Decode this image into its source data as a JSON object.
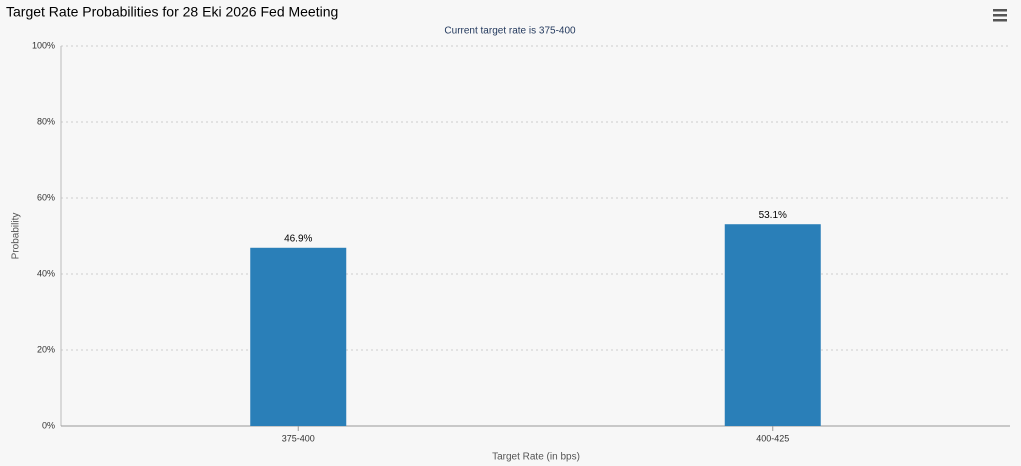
{
  "chart_data": {
    "type": "bar",
    "title": "Target Rate Probabilities for 28 Eki 2026 Fed Meeting",
    "subtitle": "Current target rate is 375-400",
    "x_label": "Target Rate (in bps)",
    "y_label": "Probability",
    "categories": [
      "375-400",
      "400-425"
    ],
    "values": [
      46.9,
      53.1
    ],
    "value_labels": [
      "46.9%",
      "53.1%"
    ],
    "color": "#2a7fb8",
    "ylim": [
      0,
      100
    ],
    "yticks": [
      {
        "value": 0,
        "label": "0%"
      },
      {
        "value": 20,
        "label": "20%"
      },
      {
        "value": 40,
        "label": "40%"
      },
      {
        "value": 60,
        "label": "60%"
      },
      {
        "value": 80,
        "label": "80%"
      },
      {
        "value": 100,
        "label": "100%"
      }
    ],
    "grid": true
  }
}
